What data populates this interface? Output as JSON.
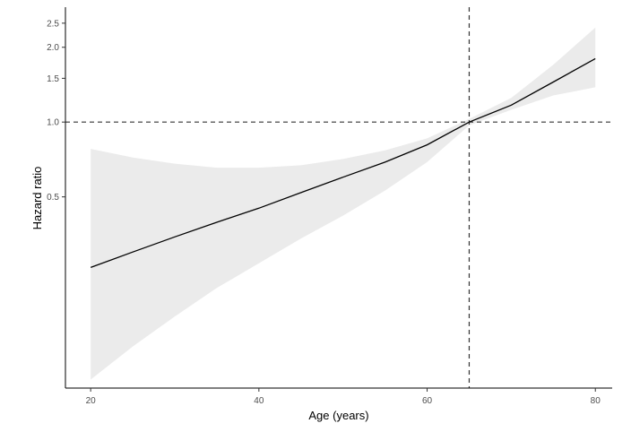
{
  "chart_data": {
    "type": "line",
    "title": "",
    "xlabel": "Age (years)",
    "ylabel": "Hazard ratio",
    "y_scale": "log",
    "xlim": [
      17,
      82
    ],
    "ylim": [
      0.085,
      2.9
    ],
    "x_ticks": [
      20,
      40,
      60,
      80
    ],
    "y_ticks": [
      {
        "value": 0.5,
        "label": "0.5"
      },
      {
        "value": 1.0,
        "label": "1.0"
      },
      {
        "value": 1.5,
        "label": "1.5"
      },
      {
        "value": 2.0,
        "label": "2.0"
      },
      {
        "value": 2.5,
        "label": "2.5"
      }
    ],
    "grid": false,
    "reference_lines": {
      "x": 65,
      "y": 1.0
    },
    "series": [
      {
        "x": [
          20,
          25,
          30,
          35,
          40,
          45,
          50,
          55,
          60,
          65,
          70,
          75,
          80
        ],
        "y": [
          0.26,
          0.3,
          0.345,
          0.395,
          0.45,
          0.52,
          0.6,
          0.69,
          0.81,
          1.0,
          1.17,
          1.45,
          1.8
        ],
        "lower": [
          0.092,
          0.125,
          0.165,
          0.215,
          0.27,
          0.34,
          0.42,
          0.53,
          0.69,
          0.97,
          1.12,
          1.28,
          1.38
        ],
        "upper": [
          0.78,
          0.72,
          0.68,
          0.655,
          0.655,
          0.67,
          0.71,
          0.77,
          0.86,
          1.03,
          1.25,
          1.7,
          2.4
        ]
      }
    ],
    "colors": {
      "line": "#000000",
      "band": "#ebebeb",
      "reference": "#333333",
      "axis": "#000000"
    }
  }
}
